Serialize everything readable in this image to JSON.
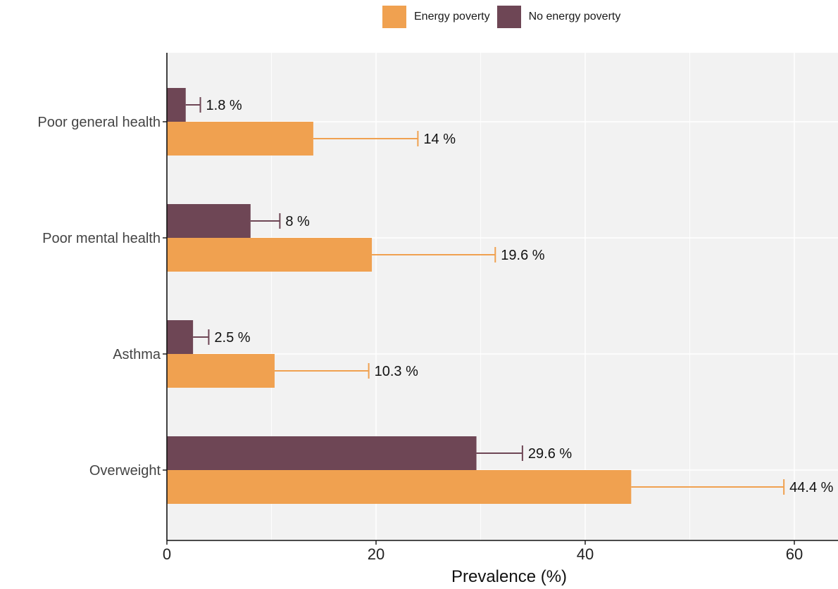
{
  "chart_data": {
    "type": "bar",
    "orientation": "horizontal",
    "categories": [
      "Poor general health",
      "Poor mental health",
      "Asthma",
      "Overweight"
    ],
    "series": [
      {
        "name": "Energy poverty",
        "color": "#F0A150",
        "values": [
          14,
          19.6,
          10.3,
          44.4
        ],
        "error_upper": [
          24,
          31.4,
          19.3,
          59
        ],
        "labels": [
          "14 %",
          "19.6 %",
          "10.3 %",
          "44.4 %"
        ]
      },
      {
        "name": "No energy poverty",
        "color": "#6E4655",
        "values": [
          1.8,
          8,
          2.5,
          29.6
        ],
        "error_upper": [
          3.2,
          10.8,
          4,
          34
        ],
        "labels": [
          "1.8 %",
          "8 %",
          "2.5 %",
          "29.6 %"
        ]
      }
    ],
    "xlabel": "Prevalence (%)",
    "ylabel": "",
    "xlim": [
      0,
      64.5
    ],
    "xticks": [
      0,
      20,
      40,
      60
    ],
    "xtick_labels": [
      "0",
      "20",
      "40",
      "60"
    ],
    "grid": true,
    "legend_position": "top",
    "panel_background": "#F2F2F2"
  }
}
